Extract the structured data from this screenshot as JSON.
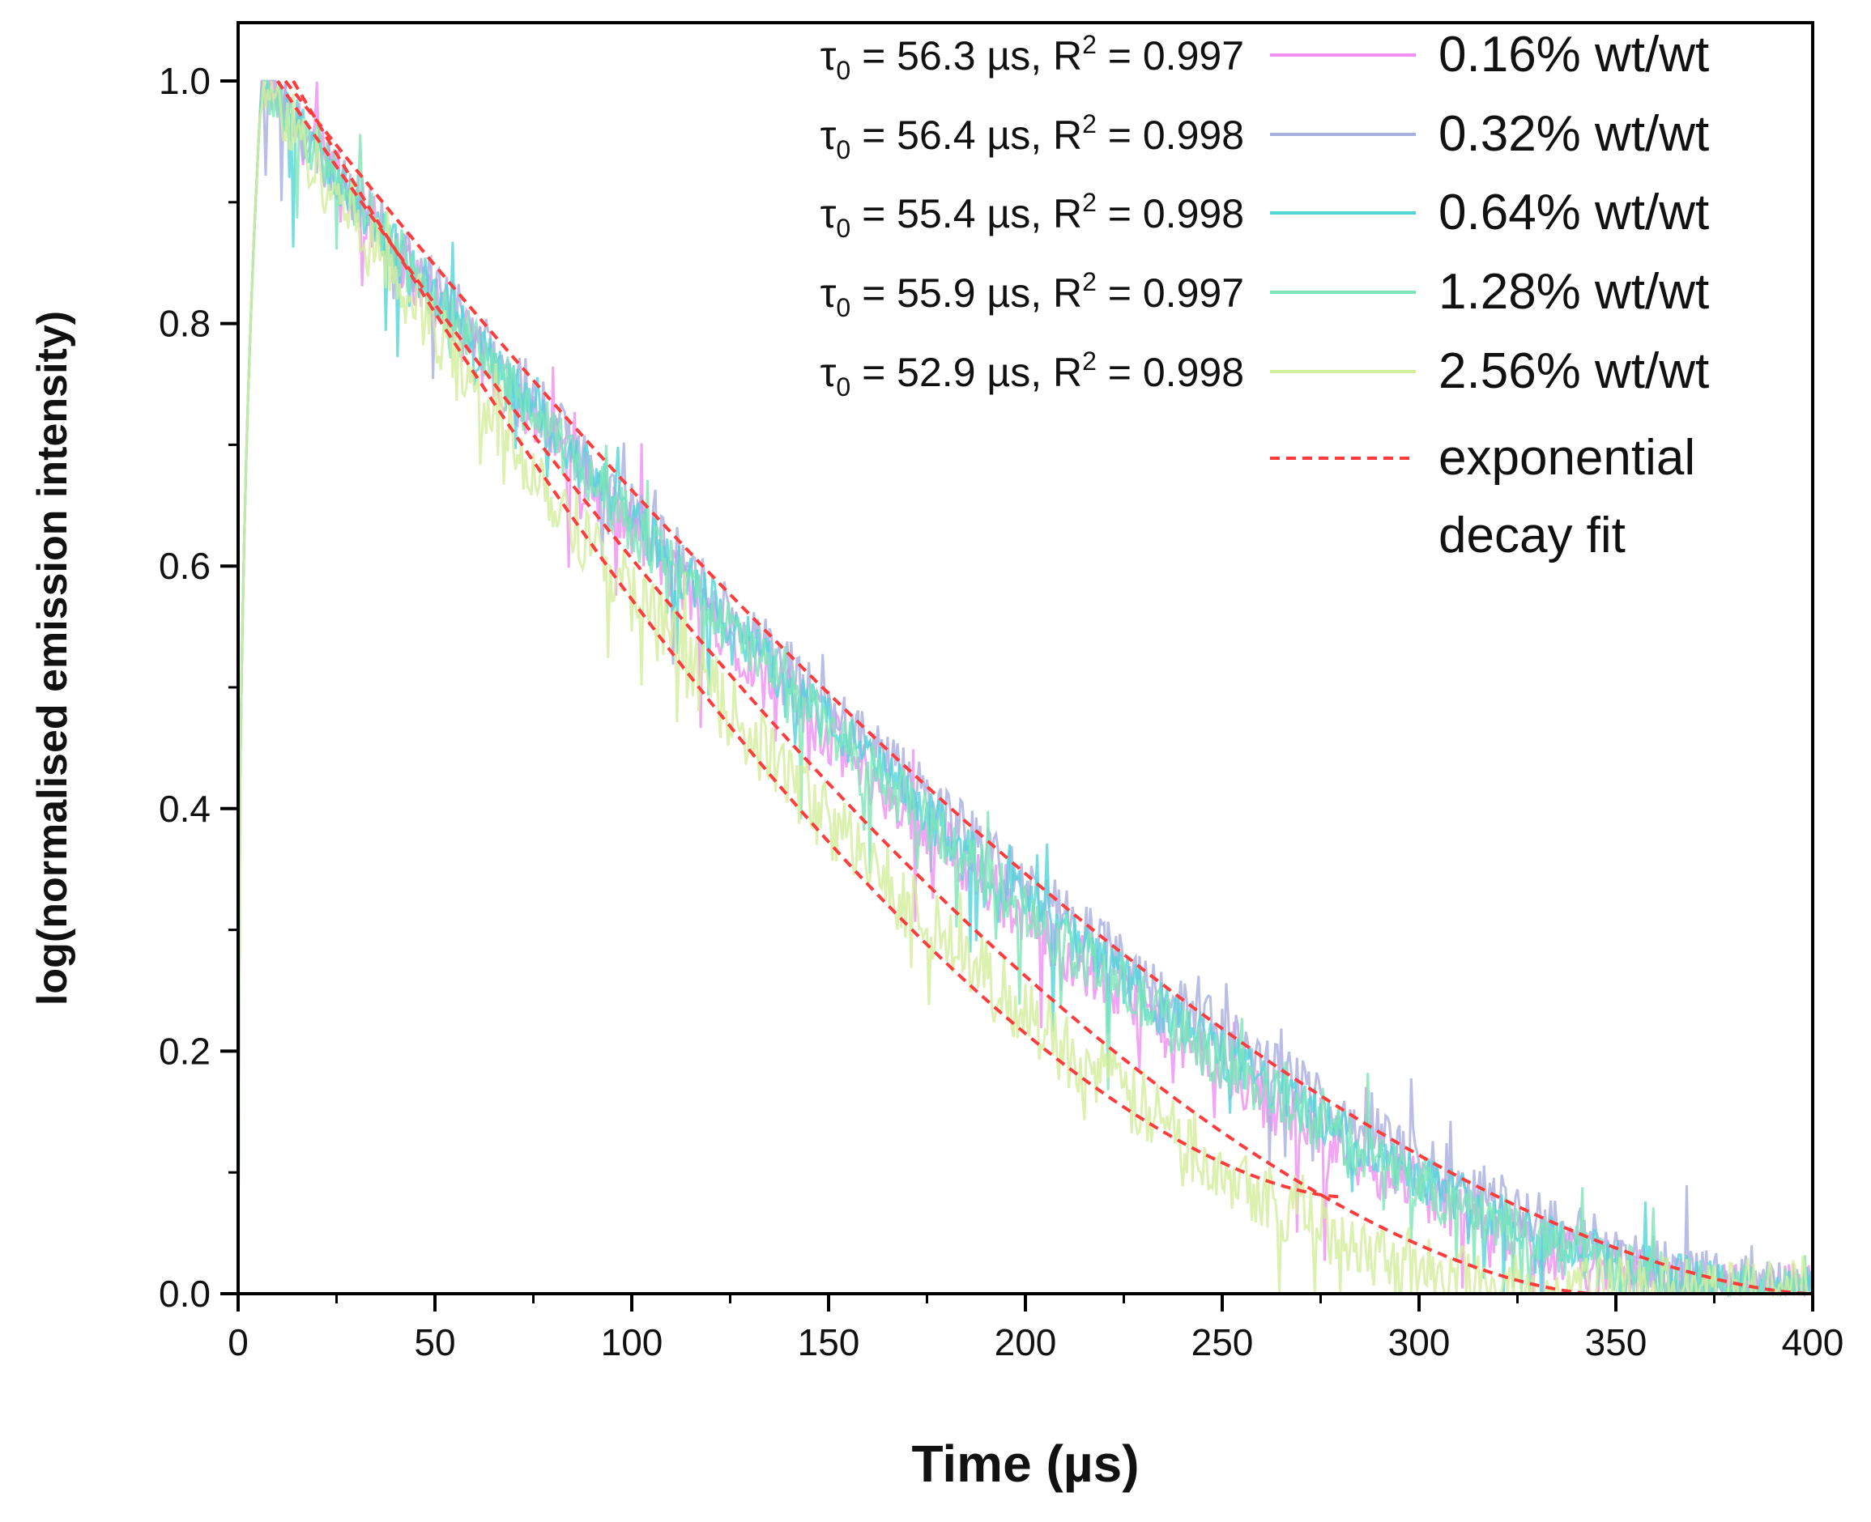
{
  "chart_data": {
    "type": "line",
    "title": "",
    "xlabel": "Time (µs)",
    "ylabel": "log(normalised emission intensity)",
    "xlim": [
      0,
      400
    ],
    "ylim": [
      0,
      1.0
    ],
    "x_ticks": [
      0,
      50,
      100,
      150,
      200,
      250,
      300,
      350,
      400
    ],
    "x_tick_labels": [
      "0",
      "50",
      "100",
      "150",
      "200",
      "250",
      "300",
      "350",
      "400"
    ],
    "y_ticks": [
      0,
      0.2,
      0.4,
      0.6,
      0.8,
      1.0
    ],
    "y_tick_labels": [
      "0.0",
      "0.2",
      "0.4",
      "0.6",
      "0.8",
      "1.0"
    ],
    "legend_position": "top-right",
    "series": [
      {
        "name": "0.16% wt/wt",
        "color": "#f08ef2",
        "tau": 56.3,
        "tau_label": "56.3 µs",
        "r2_label": "0.997",
        "peak_x": 6,
        "zero_x": 380,
        "noise": 0.025
      },
      {
        "name": "0.32% wt/wt",
        "color": "#a9aee0",
        "tau": 56.4,
        "tau_label": "56.4 µs",
        "r2_label": "0.998",
        "peak_x": 6,
        "zero_x": 400,
        "noise": 0.025
      },
      {
        "name": "0.64% wt/wt",
        "color": "#4fd6d9",
        "tau": 55.4,
        "tau_label": "55.4 µs",
        "r2_label": "0.998",
        "peak_x": 6,
        "zero_x": 390,
        "noise": 0.022
      },
      {
        "name": "1.28% wt/wt",
        "color": "#7ce6b6",
        "tau": 55.9,
        "tau_label": "55.9 µs",
        "r2_label": "0.997",
        "peak_x": 6,
        "zero_x": 385,
        "noise": 0.024
      },
      {
        "name": "2.56% wt/wt",
        "color": "#d3ee9c",
        "tau": 52.9,
        "tau_label": "52.9 µs",
        "r2_label": "0.998",
        "peak_x": 6,
        "zero_x": 330,
        "noise": 0.032
      }
    ],
    "fit_label": "exponential decay fit",
    "fit_label_lines": [
      "exponential",
      "decay fit"
    ],
    "fit_color": "#ff3b3b",
    "fit_prefix": "τ",
    "fit_prefix_sub": "0",
    "fit_r2_prefix": "R",
    "fit_r2_sup": "2",
    "fits": [
      {
        "start_x": 14,
        "end_x": 280,
        "end_y": 0.08
      },
      {
        "start_x": 12,
        "end_x": 400,
        "end_y": 0.0
      },
      {
        "start_x": 10,
        "end_x": 345,
        "end_y": 0.0
      }
    ]
  }
}
